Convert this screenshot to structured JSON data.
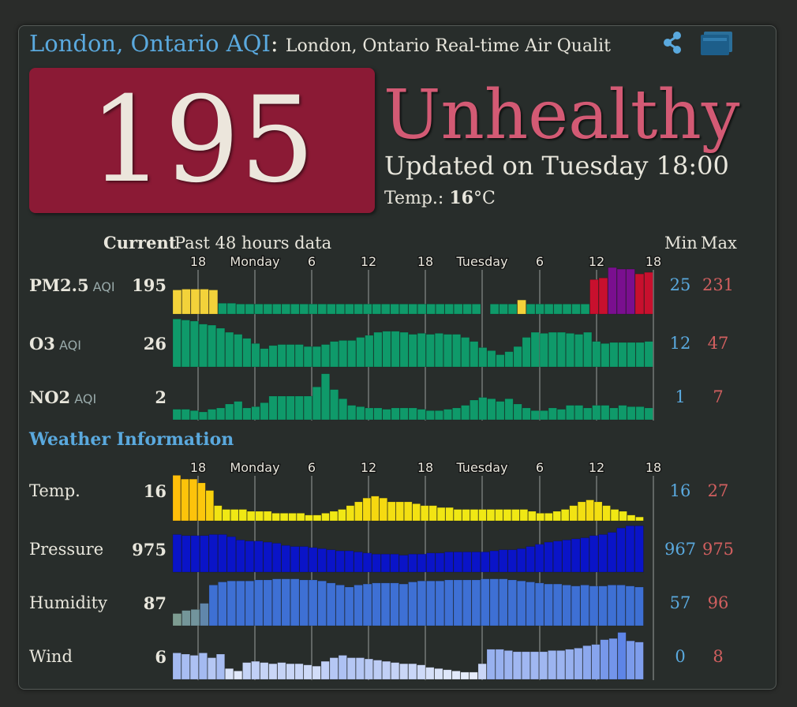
{
  "header": {
    "city": "London, Ontario AQI",
    "separator": ":",
    "subtitle": "London, Ontario Real-time Air Qualit",
    "share_icon": "share-icon",
    "widget_icon": "widget-icon"
  },
  "aqi": {
    "value": "195",
    "status": "Unhealthy",
    "updated": "Updated on Tuesday 18:00",
    "temp_label": "Temp.: ",
    "temp_value": "16",
    "temp_unit": "°C",
    "box_color": "#8b1a35",
    "status_color": "#d35a74"
  },
  "table_header": {
    "current": "Current",
    "past": "Past 48 hours data",
    "min": "Min",
    "max": "Max"
  },
  "time_ticks": [
    "18",
    "Monday",
    "6",
    "12",
    "18",
    "Tuesday",
    "6",
    "12",
    "18"
  ],
  "pollutants": [
    {
      "name": "PM2.5",
      "unit": "AQI",
      "current": "195",
      "min": "25",
      "max": "231",
      "values": [
        60,
        62,
        62,
        62,
        60,
        27,
        27,
        25,
        25,
        25,
        25,
        25,
        25,
        25,
        25,
        25,
        25,
        25,
        25,
        25,
        25,
        25,
        25,
        25,
        25,
        25,
        25,
        25,
        25,
        25,
        25,
        25,
        25,
        25,
        null,
        25,
        25,
        25,
        35,
        25,
        25,
        25,
        25,
        25,
        25,
        25,
        86,
        90,
        116,
        112,
        112,
        100,
        104
      ]
    },
    {
      "name": "O3",
      "unit": "AQI",
      "current": "26",
      "min": "12",
      "max": "47",
      "values": [
        47,
        46,
        45,
        42,
        41,
        38,
        34,
        32,
        28,
        23,
        18,
        21,
        22,
        22,
        22,
        20,
        20,
        22,
        25,
        26,
        26,
        29,
        31,
        34,
        35,
        35,
        34,
        32,
        33,
        32,
        33,
        32,
        32,
        29,
        25,
        19,
        16,
        12,
        15,
        20,
        29,
        34,
        33,
        34,
        34,
        33,
        32,
        34,
        25,
        23,
        24,
        24,
        24,
        24,
        25
      ]
    },
    {
      "name": "NO2",
      "unit": "AQI",
      "current": "2",
      "min": "1",
      "max": "7",
      "values": [
        1.6,
        1.6,
        1.4,
        1.2,
        1.6,
        1.8,
        2.4,
        2.8,
        1.8,
        2.0,
        2.6,
        3.6,
        3.6,
        3.6,
        3.6,
        3.6,
        5.0,
        7.0,
        4.6,
        3.2,
        2.2,
        2.0,
        1.8,
        1.8,
        1.6,
        1.8,
        1.8,
        1.8,
        1.6,
        1.4,
        1.4,
        1.6,
        1.8,
        2.2,
        3.0,
        3.4,
        3.2,
        2.8,
        3.2,
        2.4,
        1.8,
        1.4,
        1.4,
        1.8,
        1.6,
        2.2,
        2.2,
        1.8,
        2.2,
        2.2,
        1.8,
        2.2,
        2.0,
        2.0,
        1.8
      ]
    }
  ],
  "weather_title": "Weather Information",
  "weather": [
    {
      "name": "Temp.",
      "current": "16",
      "min": "16",
      "max": "27",
      "values": [
        27,
        26,
        26,
        25,
        23,
        19,
        18,
        18,
        18,
        17.5,
        17.5,
        17.5,
        17,
        17,
        17,
        17,
        16.5,
        16.5,
        17,
        17.5,
        18,
        19,
        20,
        21,
        21.5,
        21,
        20,
        20,
        20,
        19.5,
        19,
        19,
        18.5,
        18.5,
        18,
        18,
        18,
        18,
        18,
        18,
        18,
        18,
        18,
        17.5,
        17,
        17,
        17.5,
        18,
        19,
        20,
        20.5,
        20,
        19,
        18,
        17.5,
        16.5,
        16
      ]
    },
    {
      "name": "Pressure",
      "current": "975",
      "min": "967",
      "max": "975",
      "values": [
        973.4,
        973.2,
        973.2,
        973.2,
        973.4,
        973.4,
        973.0,
        972.4,
        972.2,
        972.2,
        972.0,
        971.8,
        971.4,
        971.2,
        971.2,
        971.0,
        970.8,
        970.6,
        970.4,
        970.4,
        970.2,
        970.0,
        969.8,
        969.8,
        969.8,
        969.6,
        969.8,
        969.8,
        970.0,
        970.0,
        970.2,
        970.2,
        970.2,
        970.2,
        970.2,
        970.4,
        970.6,
        970.6,
        970.8,
        971.2,
        971.6,
        972.0,
        972.2,
        972.4,
        972.6,
        972.8,
        973.2,
        973.4,
        973.8,
        974.6,
        975.0,
        975.0
      ]
    },
    {
      "name": "Humidity",
      "current": "87",
      "min": "57",
      "max": "96",
      "values": [
        62,
        65,
        66,
        72,
        90,
        93,
        94,
        94,
        94,
        95,
        95,
        96,
        96,
        96,
        95,
        95,
        94,
        92,
        90,
        88,
        90,
        91,
        92,
        92,
        92,
        91,
        93,
        94,
        94,
        94,
        95,
        95,
        95,
        95,
        96,
        96,
        96,
        95,
        94,
        93,
        92,
        91,
        91,
        90,
        89,
        90,
        89,
        89,
        90,
        90,
        89,
        88
      ]
    },
    {
      "name": "Wind",
      "current": "6",
      "min": "0",
      "max": "8",
      "values": [
        4.4,
        4.2,
        4.0,
        4.4,
        3.6,
        4.2,
        1.8,
        1.4,
        2.8,
        3.0,
        2.8,
        2.6,
        2.8,
        2.6,
        2.6,
        2.4,
        2.2,
        3.0,
        3.6,
        4.0,
        3.6,
        3.6,
        3.4,
        3.2,
        3.0,
        2.8,
        2.6,
        2.6,
        2.4,
        2.0,
        1.8,
        1.6,
        1.4,
        1.2,
        1.2,
        2.6,
        5.0,
        5.0,
        4.8,
        4.6,
        4.6,
        4.6,
        4.6,
        4.8,
        4.8,
        5.0,
        5.2,
        5.6,
        5.8,
        6.6,
        6.8,
        7.8,
        6.4,
        6.2
      ]
    }
  ]
}
